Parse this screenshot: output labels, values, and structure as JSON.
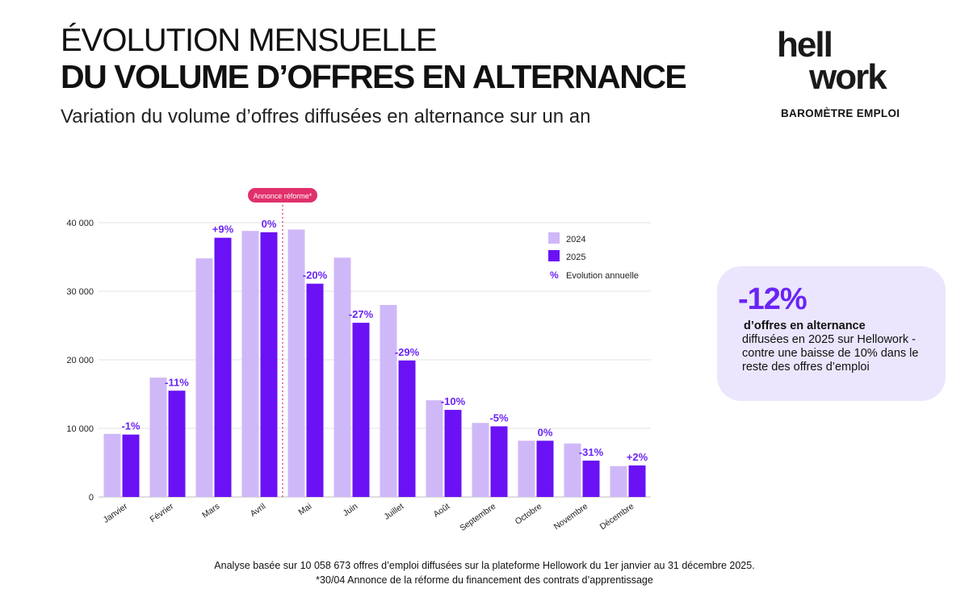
{
  "header": {
    "title_line1": "ÉVOLUTION MENSUELLE",
    "title_line2": "DU VOLUME D’OFFRES EN ALTERNANCE",
    "subtitle": "Variation du volume d’offres diffusées en alternance sur un an"
  },
  "logo": {
    "line1": "hell",
    "line2": "work",
    "tagline": "BAROMÈTRE EMPLOI"
  },
  "colors": {
    "series_2024": "#cfb8f8",
    "series_2025": "#6a12f5",
    "accent": "#6a24f5",
    "annotation": "#e0306a",
    "grid": "#e3e3e3"
  },
  "chart_data": {
    "type": "bar",
    "categories": [
      "Janvier",
      "Février",
      "Mars",
      "Avril",
      "Mai",
      "Juin",
      "Juillet",
      "Août",
      "Septembre",
      "Octobre",
      "Novembre",
      "Décembre"
    ],
    "series": [
      {
        "name": "2024",
        "values": [
          9200,
          17400,
          34800,
          38800,
          39000,
          34900,
          28000,
          14100,
          10800,
          8200,
          7800,
          4500
        ]
      },
      {
        "name": "2025",
        "values": [
          9100,
          15500,
          37800,
          38600,
          31100,
          25400,
          19900,
          12700,
          10300,
          8200,
          5300,
          4600
        ]
      }
    ],
    "evolution_labels": [
      "-1%",
      "-11%",
      "+9%",
      "0%",
      "-20%",
      "-27%",
      "-29%",
      "-10%",
      "-5%",
      "0%",
      "-31%",
      "+2%"
    ],
    "ylim": [
      0,
      40000
    ],
    "yticks": [
      0,
      10000,
      20000,
      30000,
      40000
    ],
    "ytick_labels": [
      "0",
      "10 000",
      "20 000",
      "30 000",
      "40 000"
    ],
    "legend": {
      "items": [
        "2024",
        "2025"
      ],
      "evolution_symbol": "%",
      "evolution_label": "Evolution annuelle",
      "position": "top-right"
    },
    "annotation": {
      "label": "Annonce réforme*",
      "between": [
        "Avril",
        "Mai"
      ]
    }
  },
  "callout": {
    "value": "-12%",
    "bold_text": "d’offres en alternance",
    "text": "diffusées en 2025 sur Hellowork - contre une baisse de 10% dans le reste des offres d’emploi"
  },
  "footnotes": {
    "line1": "Analyse basée sur 10 058 673 offres d’emploi diffusées sur la plateforme Hellowork du 1er janvier au 31 décembre 2025.",
    "line2": "*30/04 Annonce de la réforme du financement des contrats d’apprentissage"
  }
}
